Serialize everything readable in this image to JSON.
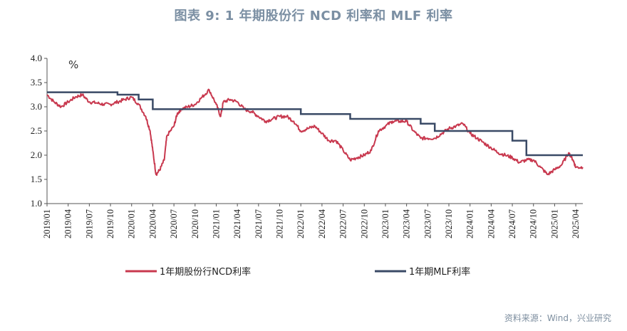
{
  "title": "图表 9:  1 年期股份行 NCD 利率和 MLF 利率",
  "source": "资料来源：Wind，兴业研究",
  "chart_data": {
    "type": "line",
    "unit": "%",
    "ylim": [
      1.0,
      4.0
    ],
    "yticks": [
      1.0,
      1.5,
      2.0,
      2.5,
      3.0,
      3.5,
      4.0
    ],
    "xlim": [
      "2019-01",
      "2025-05"
    ],
    "xticks": [
      "2019/01",
      "2019/04",
      "2019/07",
      "2019/10",
      "2020/01",
      "2020/04",
      "2020/07",
      "2020/10",
      "2021/01",
      "2021/04",
      "2021/07",
      "2021/10",
      "2022/01",
      "2022/04",
      "2022/07",
      "2022/10",
      "2023/01",
      "2023/04",
      "2023/07",
      "2023/10",
      "2024/01",
      "2024/04",
      "2024/07",
      "2024/10",
      "2025/01",
      "2025/04"
    ],
    "legend_position": "bottom",
    "series": [
      {
        "name": "1年期股份行NCD利率",
        "color": "#c8384e",
        "points": [
          [
            "2019-01",
            3.25
          ],
          [
            "2019-02",
            3.1
          ],
          [
            "2019-03",
            3.0
          ],
          [
            "2019-04",
            3.1
          ],
          [
            "2019-05",
            3.2
          ],
          [
            "2019-06",
            3.25
          ],
          [
            "2019-07",
            3.1
          ],
          [
            "2019-08",
            3.08
          ],
          [
            "2019-09",
            3.05
          ],
          [
            "2019-10",
            3.05
          ],
          [
            "2019-11",
            3.1
          ],
          [
            "2019-12",
            3.15
          ],
          [
            "2020-01",
            3.2
          ],
          [
            "2020-02",
            3.05
          ],
          [
            "2020-03",
            2.8
          ],
          [
            "2020-03-20",
            2.5
          ],
          [
            "2020-04",
            2.1
          ],
          [
            "2020-04-15",
            1.6
          ],
          [
            "2020-05",
            1.7
          ],
          [
            "2020-05-20",
            1.9
          ],
          [
            "2020-06",
            2.4
          ],
          [
            "2020-07",
            2.6
          ],
          [
            "2020-07-15",
            2.85
          ],
          [
            "2020-08",
            2.95
          ],
          [
            "2020-09",
            3.0
          ],
          [
            "2020-10",
            3.05
          ],
          [
            "2020-11",
            3.2
          ],
          [
            "2020-12",
            3.35
          ],
          [
            "2021-01",
            3.05
          ],
          [
            "2021-01-20",
            2.8
          ],
          [
            "2021-02",
            3.1
          ],
          [
            "2021-03",
            3.15
          ],
          [
            "2021-04",
            3.1
          ],
          [
            "2021-05",
            2.95
          ],
          [
            "2021-06",
            2.9
          ],
          [
            "2021-07",
            2.8
          ],
          [
            "2021-08",
            2.7
          ],
          [
            "2021-09",
            2.75
          ],
          [
            "2021-10",
            2.8
          ],
          [
            "2021-11",
            2.8
          ],
          [
            "2021-12",
            2.7
          ],
          [
            "2022-01",
            2.5
          ],
          [
            "2022-02",
            2.55
          ],
          [
            "2022-03",
            2.6
          ],
          [
            "2022-04",
            2.45
          ],
          [
            "2022-05",
            2.3
          ],
          [
            "2022-06",
            2.3
          ],
          [
            "2022-07",
            2.1
          ],
          [
            "2022-08",
            1.9
          ],
          [
            "2022-09",
            1.95
          ],
          [
            "2022-10",
            2.0
          ],
          [
            "2022-11",
            2.1
          ],
          [
            "2022-12",
            2.5
          ],
          [
            "2023-01",
            2.6
          ],
          [
            "2023-02",
            2.7
          ],
          [
            "2023-03",
            2.7
          ],
          [
            "2023-04",
            2.7
          ],
          [
            "2023-05",
            2.5
          ],
          [
            "2023-06",
            2.35
          ],
          [
            "2023-07",
            2.35
          ],
          [
            "2023-08",
            2.35
          ],
          [
            "2023-09",
            2.45
          ],
          [
            "2023-10",
            2.55
          ],
          [
            "2023-11",
            2.6
          ],
          [
            "2023-12",
            2.65
          ],
          [
            "2024-01",
            2.45
          ],
          [
            "2024-02",
            2.35
          ],
          [
            "2024-03",
            2.25
          ],
          [
            "2024-04",
            2.15
          ],
          [
            "2024-05",
            2.05
          ],
          [
            "2024-06",
            2.0
          ],
          [
            "2024-07",
            1.95
          ],
          [
            "2024-08",
            1.85
          ],
          [
            "2024-09",
            1.9
          ],
          [
            "2024-10",
            1.9
          ],
          [
            "2024-11",
            1.75
          ],
          [
            "2024-12",
            1.6
          ],
          [
            "2025-01",
            1.7
          ],
          [
            "2025-02",
            1.8
          ],
          [
            "2025-03",
            2.05
          ],
          [
            "2025-03-20",
            1.9
          ],
          [
            "2025-04",
            1.75
          ],
          [
            "2025-05",
            1.75
          ]
        ]
      },
      {
        "name": "1年期MLF利率",
        "color": "#3a4a66",
        "steps": [
          [
            "2019-01",
            3.3
          ],
          [
            "2019-11",
            3.25
          ],
          [
            "2020-02",
            3.15
          ],
          [
            "2020-04",
            2.95
          ],
          [
            "2022-01",
            2.85
          ],
          [
            "2022-08",
            2.75
          ],
          [
            "2023-06",
            2.65
          ],
          [
            "2023-08",
            2.5
          ],
          [
            "2024-07",
            2.3
          ],
          [
            "2024-09",
            2.0
          ],
          [
            "2025-05",
            2.0
          ]
        ]
      }
    ]
  }
}
